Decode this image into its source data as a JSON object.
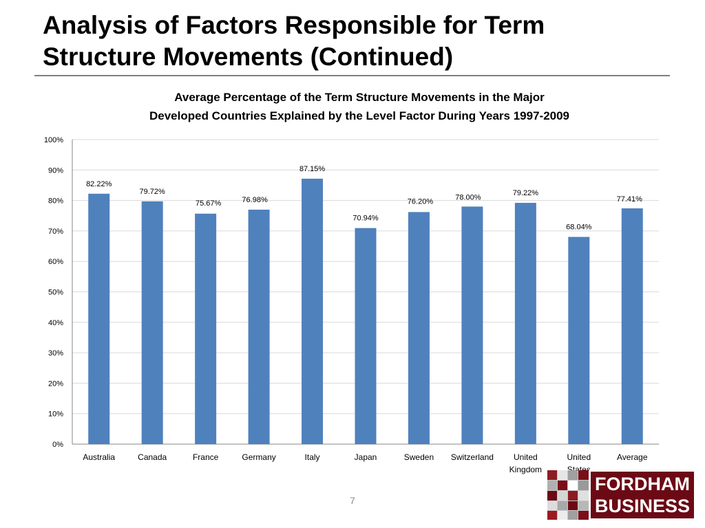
{
  "slide": {
    "title_line1": "Analysis of Factors Responsible for Term",
    "title_line2": "Structure Movements (Continued)",
    "page_number": "7"
  },
  "logo": {
    "line1": "FORDHAM",
    "line2": "BUSINESS",
    "color": "#6b0a14"
  },
  "chart_data": {
    "type": "bar",
    "title": "Average Percentage of the Term Structure Movements in the Major Developed Countries Explained by the Level Factor During Years 1997-2009",
    "title_lines": [
      "Average Percentage of the Term Structure Movements in the Major",
      "Developed Countries Explained by the Level Factor During Years 1997-2009"
    ],
    "categories": [
      [
        "Australia"
      ],
      [
        "Canada"
      ],
      [
        "France"
      ],
      [
        "Germany"
      ],
      [
        "Italy"
      ],
      [
        "Japan"
      ],
      [
        "Sweden"
      ],
      [
        "Switzerland"
      ],
      [
        "United",
        "Kingdom"
      ],
      [
        "United",
        "States"
      ],
      [
        "Average"
      ]
    ],
    "values": [
      82.22,
      79.72,
      75.67,
      76.98,
      87.15,
      70.94,
      76.2,
      78.0,
      79.22,
      68.04,
      77.41
    ],
    "data_labels": [
      "82.22%",
      "79.72%",
      "75.67%",
      "76.98%",
      "87.15%",
      "70.94%",
      "76.20%",
      "78.00%",
      "79.22%",
      "68.04%",
      "77.41%"
    ],
    "y_ticks": [
      "0%",
      "10%",
      "20%",
      "30%",
      "40%",
      "50%",
      "60%",
      "70%",
      "80%",
      "90%",
      "100%"
    ],
    "ylim": [
      0,
      100
    ],
    "xlabel": "",
    "ylabel": "",
    "grid": true,
    "legend": "none",
    "bar_color": "#4f81bd",
    "grid_color": "#d9d9d9"
  }
}
